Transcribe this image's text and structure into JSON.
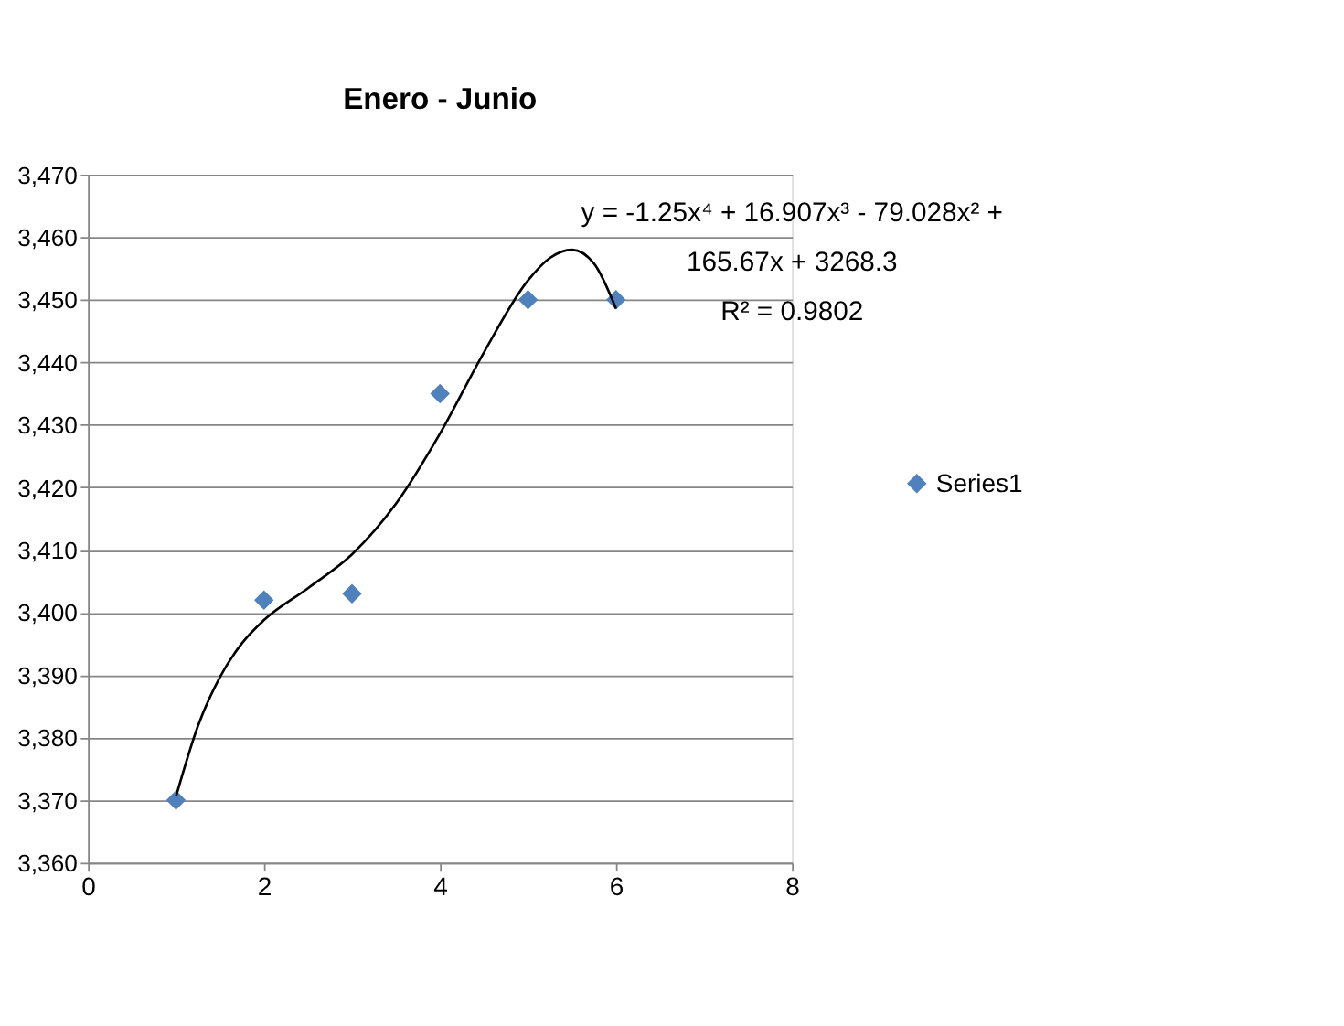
{
  "chart_data": {
    "type": "scatter",
    "title": "Enero - Junio",
    "series": [
      {
        "name": "Series1",
        "color": "#4f81bd",
        "x": [
          1,
          2,
          3,
          4,
          5,
          6
        ],
        "values": [
          3370,
          3402,
          3403,
          3435,
          3450,
          3450
        ],
        "marker": "diamond"
      },
      {
        "type": "line",
        "color": "#000000",
        "x": [
          1,
          1.25,
          1.5,
          1.75,
          2,
          2.5,
          3,
          3.5,
          4,
          4.5,
          5,
          5.25,
          5.5,
          5.75,
          6
        ],
        "values": [
          3370.6,
          3381.9,
          3389.7,
          3395.1,
          3398.8,
          3403.9,
          3409.3,
          3417.4,
          3428.6,
          3441.6,
          3453.1,
          3456.7,
          3458.0,
          3455.8,
          3448.6
        ],
        "line_style": "solid",
        "marker": "none"
      }
    ],
    "annotations": [
      "y = -1.25x⁴ + 16.907x³ - 79.028x² +",
      "165.67x + 3268.3",
      "R² = 0.9802"
    ],
    "xlim": [
      0,
      8
    ],
    "xticks": [
      0,
      2,
      4,
      6,
      8
    ],
    "ylim": [
      3360,
      3470
    ],
    "yticks": [
      {
        "value": 3360,
        "label": "3,360"
      },
      {
        "value": 3370,
        "label": "3,370"
      },
      {
        "value": 3380,
        "label": "3,380"
      },
      {
        "value": 3390,
        "label": "3,390"
      },
      {
        "value": 3400,
        "label": "3,400"
      },
      {
        "value": 3410,
        "label": "3,410"
      },
      {
        "value": 3420,
        "label": "3,420"
      },
      {
        "value": 3430,
        "label": "3,430"
      },
      {
        "value": 3440,
        "label": "3,440"
      },
      {
        "value": 3450,
        "label": "3,450"
      },
      {
        "value": 3460,
        "label": "3,460"
      },
      {
        "value": 3470,
        "label": "3,470"
      }
    ],
    "grid": "y",
    "legend": "right"
  }
}
